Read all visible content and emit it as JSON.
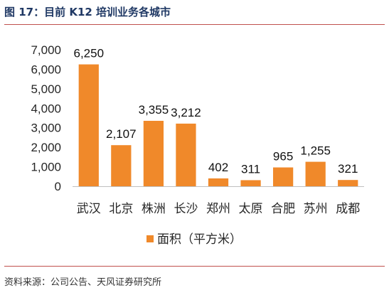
{
  "figure": {
    "title": "图 17：目前 K12 培训业务各城市",
    "source": "资料来源：公司公告、天风证券研究所"
  },
  "colors": {
    "bar": "#f0892a",
    "title": "#1f3864",
    "rule": "#c0504d"
  },
  "chart_data": {
    "type": "bar",
    "title": "",
    "xlabel": "",
    "ylabel": "",
    "categories": [
      "武汉",
      "北京",
      "株洲",
      "长沙",
      "郑州",
      "太原",
      "合肥",
      "苏州",
      "成都"
    ],
    "series": [
      {
        "name": "面积（平方米）",
        "values": [
          6250,
          2107,
          3355,
          3212,
          402,
          311,
          965,
          1255,
          321
        ]
      }
    ],
    "data_labels": [
      "6,250",
      "2,107",
      "3,355",
      "3,212",
      "402",
      "311",
      "965",
      "1,255",
      "321"
    ],
    "ylim": [
      0,
      7000
    ],
    "yticks": [
      0,
      1000,
      2000,
      3000,
      4000,
      5000,
      6000,
      7000
    ],
    "ytick_labels": [
      "0",
      "1,000",
      "2,000",
      "3,000",
      "4,000",
      "5,000",
      "6,000",
      "7,000"
    ],
    "grid": false,
    "legend_position": "bottom"
  }
}
